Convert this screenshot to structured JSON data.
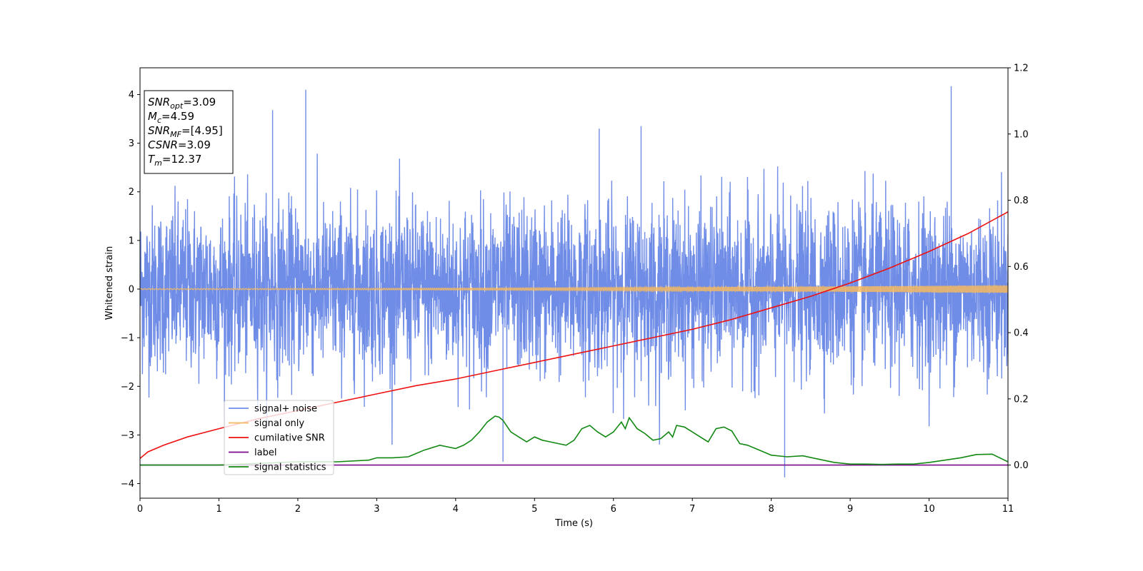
{
  "chart_data": {
    "type": "line",
    "xlabel": "Time (s)",
    "ylabel": "Whitened strain",
    "xlim": [
      0,
      11
    ],
    "ylim": [
      -4.3,
      4.55
    ],
    "y2lim": [
      -0.1,
      1.2
    ],
    "x_ticks": [
      "0",
      "1",
      "2",
      "3",
      "4",
      "5",
      "6",
      "7",
      "8",
      "9",
      "10",
      "11"
    ],
    "y_ticks": [
      "−4",
      "−3",
      "−2",
      "−1",
      "0",
      "1",
      "2",
      "3",
      "4"
    ],
    "y2_ticks": [
      "0.0",
      "0.2",
      "0.4",
      "0.6",
      "0.8",
      "1.0",
      "1.2"
    ],
    "grid": false,
    "legend_position": "lower-left",
    "annotations": [
      {
        "base": "SNR",
        "sub": "opt",
        "rest": "=3.09"
      },
      {
        "base": "M",
        "sub": "c",
        "rest": "=4.59"
      },
      {
        "base": "SNR",
        "sub": "MF",
        "rest": "=[4.95]"
      },
      {
        "base": "CSNR",
        "sub": "",
        "rest": "=3.09"
      },
      {
        "base": "T",
        "sub": "m",
        "rest": "=12.37"
      }
    ],
    "series": [
      {
        "name": "signal+ noise",
        "color": "#6f8ce6",
        "axis": "left",
        "kind": "noise",
        "typical_std": 0.85,
        "spikes": [
          [
            1.68,
            3.68
          ],
          [
            2.1,
            4.1
          ],
          [
            10.28,
            4.17
          ],
          [
            8.17,
            -3.87
          ],
          [
            4.6,
            -3.55
          ],
          [
            6.35,
            3.35
          ],
          [
            5.82,
            3.3
          ]
        ]
      },
      {
        "name": "signal only",
        "color": "#f4b860",
        "axis": "left",
        "kind": "chirp",
        "amplitude_start": 0.01,
        "amplitude_end": 0.08
      },
      {
        "name": "cumilative SNR",
        "color": "#ee1111",
        "axis": "right",
        "x": [
          0,
          0.1,
          0.3,
          0.6,
          1,
          1.5,
          2,
          2.5,
          3,
          3.5,
          4,
          4.5,
          5,
          5.5,
          6,
          6.5,
          7,
          7.5,
          8,
          8.5,
          9,
          9.5,
          10,
          10.5,
          11
        ],
        "y": [
          0.02,
          0.04,
          0.06,
          0.085,
          0.11,
          0.14,
          0.165,
          0.19,
          0.215,
          0.24,
          0.26,
          0.285,
          0.31,
          0.335,
          0.36,
          0.385,
          0.41,
          0.44,
          0.475,
          0.51,
          0.55,
          0.595,
          0.645,
          0.7,
          0.765
        ]
      },
      {
        "name": "label",
        "color": "#7a0a8a",
        "axis": "right",
        "x": [
          0,
          11
        ],
        "y": [
          0,
          0
        ]
      },
      {
        "name": "signal statistics",
        "color": "#118811",
        "axis": "right",
        "x": [
          0,
          0.5,
          1,
          1.5,
          2,
          2.5,
          2.9,
          3,
          3.2,
          3.4,
          3.6,
          3.8,
          3.9,
          4,
          4.1,
          4.2,
          4.3,
          4.4,
          4.5,
          4.55,
          4.6,
          4.7,
          4.8,
          4.9,
          5,
          5.1,
          5.2,
          5.3,
          5.4,
          5.5,
          5.6,
          5.7,
          5.8,
          5.9,
          6,
          6.1,
          6.15,
          6.2,
          6.3,
          6.4,
          6.5,
          6.6,
          6.7,
          6.75,
          6.8,
          6.9,
          7,
          7.1,
          7.2,
          7.3,
          7.4,
          7.5,
          7.6,
          7.7,
          7.8,
          8,
          8.2,
          8.4,
          8.6,
          8.8,
          9,
          9.2,
          9.4,
          9.6,
          9.8,
          10,
          10.2,
          10.4,
          10.6,
          10.8,
          11
        ],
        "y": [
          0.0,
          0.0,
          0.0,
          0.005,
          0.01,
          0.01,
          0.015,
          0.022,
          0.022,
          0.025,
          0.045,
          0.06,
          0.055,
          0.05,
          0.06,
          0.075,
          0.1,
          0.13,
          0.148,
          0.145,
          0.135,
          0.1,
          0.085,
          0.07,
          0.085,
          0.075,
          0.07,
          0.065,
          0.06,
          0.075,
          0.11,
          0.12,
          0.1,
          0.085,
          0.1,
          0.13,
          0.11,
          0.143,
          0.11,
          0.095,
          0.075,
          0.08,
          0.1,
          0.085,
          0.12,
          0.115,
          0.1,
          0.085,
          0.07,
          0.11,
          0.115,
          0.103,
          0.065,
          0.06,
          0.05,
          0.03,
          0.025,
          0.028,
          0.018,
          0.008,
          0.003,
          0.003,
          0.002,
          0.003,
          0.003,
          0.008,
          0.015,
          0.022,
          0.032,
          0.033,
          0.01
        ]
      }
    ]
  }
}
